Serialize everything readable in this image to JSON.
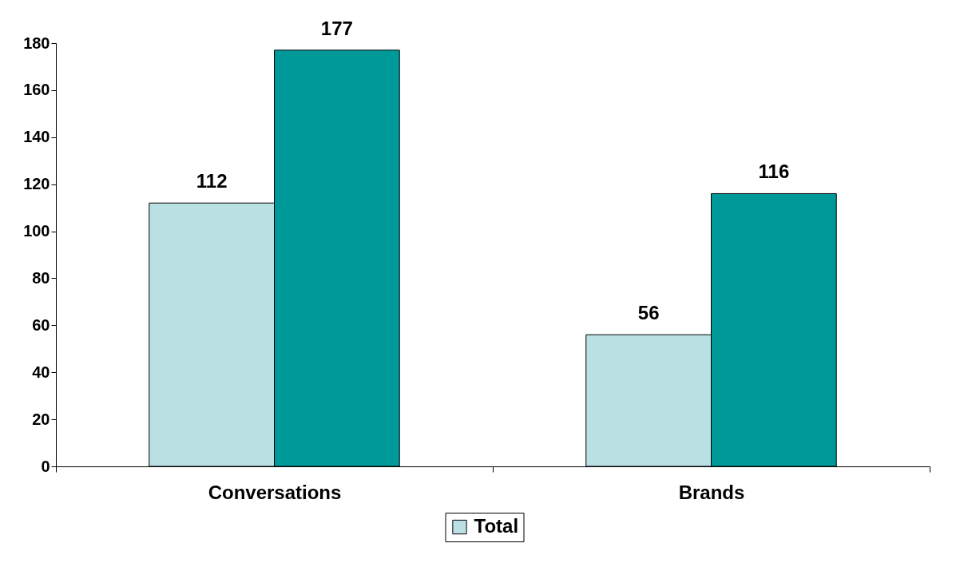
{
  "chart_data": {
    "type": "bar",
    "categories": [
      "Conversations",
      "Brands"
    ],
    "series": [
      {
        "name": "Total",
        "color": "#bbe0e3",
        "values": [
          112,
          56
        ]
      },
      {
        "color": "#009999",
        "values": [
          177,
          116
        ]
      }
    ],
    "ylim": [
      0,
      180
    ],
    "yticks": [
      0,
      20,
      40,
      60,
      80,
      100,
      120,
      140,
      160,
      180
    ],
    "data_labels": true,
    "legend": "bottom"
  }
}
